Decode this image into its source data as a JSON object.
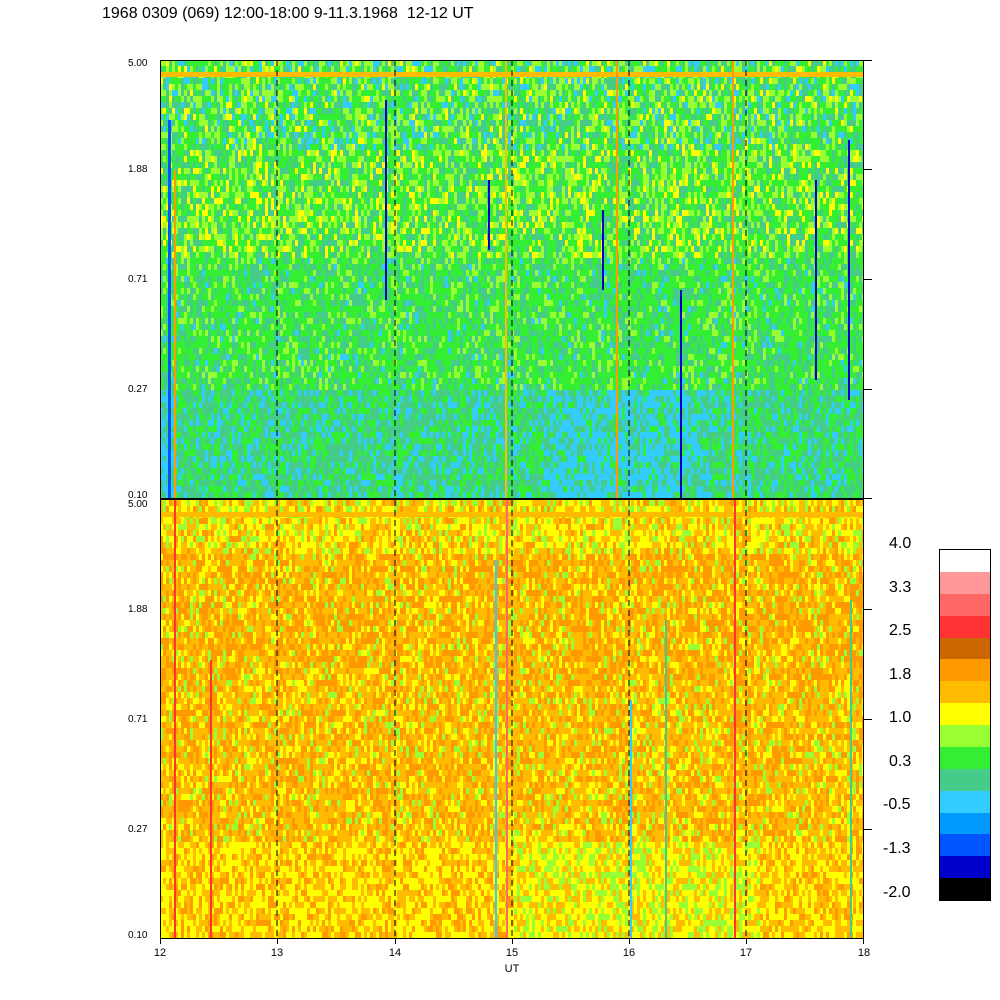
{
  "title": "1968 0309 (069) 12:00-18:00 9-11.3.1968  12-12 UT",
  "chart_data": [
    {
      "type": "heatmap",
      "panel": "upper",
      "y_ticks": [
        "5.00",
        "1.88",
        "0.71",
        "0.27",
        "0.10"
      ],
      "y_range": [
        0.1,
        5.0
      ],
      "y_scale": "log",
      "x_ticks": [
        "12",
        "13",
        "14",
        "15",
        "16",
        "17",
        "18"
      ],
      "x_range": [
        12,
        18
      ],
      "dashed_hour_lines": [
        13,
        14,
        15,
        16,
        17
      ],
      "dominant_levels": [
        "0.3",
        "-0.5",
        "1.0"
      ],
      "band_top": "1.8"
    },
    {
      "type": "heatmap",
      "panel": "lower",
      "y_ticks": [
        "5.00",
        "1.88",
        "0.71",
        "0.27",
        "0.10"
      ],
      "y_range": [
        0.1,
        5.0
      ],
      "y_scale": "log",
      "x_ticks": [
        "12",
        "13",
        "14",
        "15",
        "16",
        "17",
        "18"
      ],
      "x_range": [
        12,
        18
      ],
      "xlabel": "UT",
      "dashed_hour_lines": [
        13,
        14,
        15,
        16,
        17
      ],
      "dominant_levels": [
        "1.8",
        "1.0",
        "0.3"
      ],
      "band_top": "1.8"
    }
  ],
  "colorbar": {
    "labels": [
      "4.0",
      "3.3",
      "2.5",
      "1.8",
      "1.0",
      "0.3",
      "-0.5",
      "-1.3",
      "-2.0"
    ],
    "colors": [
      "#ffffff",
      "#ff9999",
      "#ff6666",
      "#ff3333",
      "#cc6600",
      "#ff9900",
      "#ffbb00",
      "#ffff00",
      "#99ff33",
      "#33ee33",
      "#44cc88",
      "#33ccff",
      "#0099ff",
      "#0055ff",
      "#0000cc",
      "#000000"
    ]
  },
  "xlabel": "UT"
}
